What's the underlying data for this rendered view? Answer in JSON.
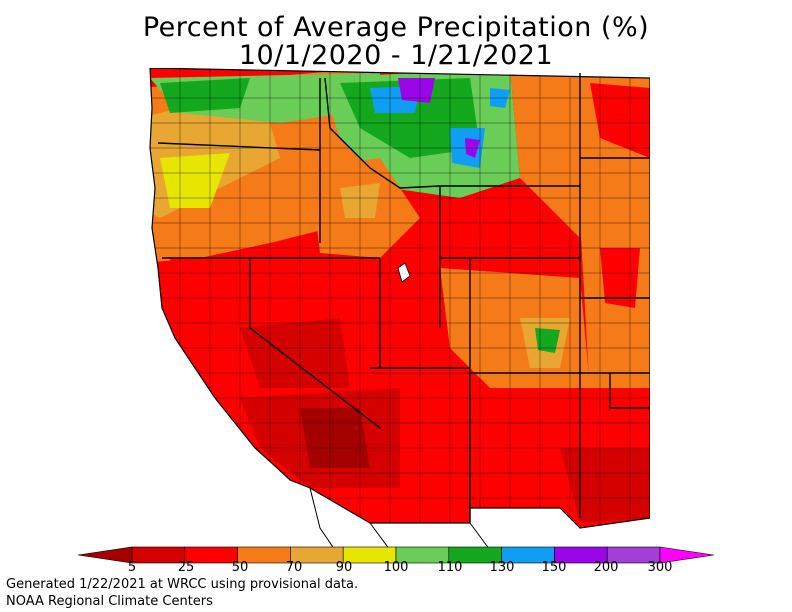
{
  "title": {
    "line1": "Percent of Average Precipitation (%)",
    "line2": "10/1/2020 - 1/21/2021"
  },
  "legend": {
    "colors": [
      "#a50000",
      "#d50000",
      "#ff0000",
      "#f57a18",
      "#e8a733",
      "#e6e600",
      "#6acd58",
      "#13a81e",
      "#0f9ef4",
      "#9b06e8",
      "#a13fd6",
      "#ff00ff"
    ],
    "ticks": [
      "5",
      "25",
      "50",
      "70",
      "90",
      "100",
      "110",
      "130",
      "150",
      "200",
      "300"
    ]
  },
  "footer": {
    "line1": "Generated 1/22/2021 at WRCC using provisional data.",
    "line2": "NOAA Regional Climate Centers"
  }
}
